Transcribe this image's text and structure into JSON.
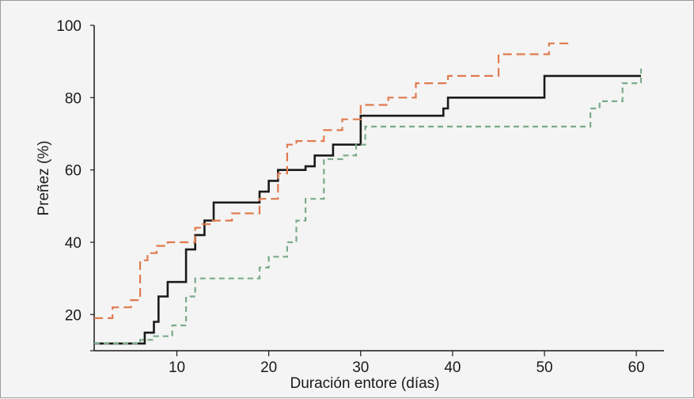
{
  "chart_data": {
    "type": "line",
    "title": "",
    "xlabel": "Duración entore (días)",
    "ylabel": "Preñez (%)",
    "xlim": [
      1,
      63
    ],
    "ylim": [
      10,
      100
    ],
    "x_ticks": [
      10,
      20,
      30,
      40,
      50,
      60
    ],
    "y_ticks": [
      10,
      20,
      40,
      60,
      80,
      100
    ],
    "y_tick_labels": [
      "",
      "20",
      "40",
      "60",
      "80",
      "100"
    ],
    "grid": false,
    "legend": "none",
    "step_interpolation": "after",
    "series": [
      {
        "style": "solid",
        "color": "#1a1a1a",
        "x": [
          1,
          6,
          6.5,
          7.5,
          8,
          9,
          11,
          12,
          13,
          14,
          19,
          20,
          21,
          24,
          25,
          27,
          30,
          39,
          39.5,
          50,
          60.5
        ],
        "y": [
          12,
          12,
          15,
          18,
          25,
          29,
          38,
          42,
          46,
          51,
          54,
          57,
          60,
          61,
          64,
          67,
          75,
          77,
          80,
          86,
          86
        ]
      },
      {
        "style": "dashed",
        "color": "#e07a4e",
        "x": [
          1,
          3,
          5,
          6,
          6.8,
          7.8,
          9,
          11,
          12,
          12.8,
          13.8,
          16,
          19,
          21,
          22,
          23,
          26,
          28,
          30,
          33,
          36,
          39.5,
          45,
          50.5,
          52.5
        ],
        "y": [
          19,
          22,
          24,
          35,
          37,
          39,
          40,
          40,
          44,
          45,
          46,
          48,
          52,
          59,
          67,
          68,
          71,
          74,
          78,
          80,
          84,
          86,
          92,
          95,
          96
        ]
      },
      {
        "style": "dashed",
        "color": "#7aab8a",
        "x": [
          1,
          5,
          6,
          7.5,
          9.5,
          11,
          12,
          19,
          20,
          22,
          23,
          24,
          26,
          28,
          29.5,
          30.5,
          55,
          56,
          58.5,
          60.5
        ],
        "y": [
          12,
          12,
          13,
          14,
          17,
          25,
          30,
          33,
          36,
          40,
          46,
          52,
          63,
          64,
          67,
          72,
          77,
          79,
          84,
          88
        ]
      }
    ]
  }
}
